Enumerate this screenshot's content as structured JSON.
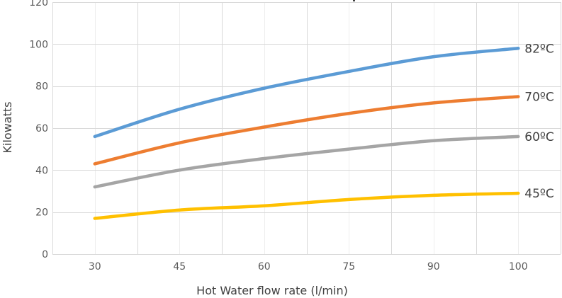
{
  "chart_data": {
    "type": "line",
    "title": "",
    "xlabel": "Hot Water flow rate (l/min)",
    "ylabel": "Kilowatts",
    "categories": [
      "30",
      "45",
      "60",
      "75",
      "90",
      "100"
    ],
    "ylim": [
      0,
      120
    ],
    "yticks": [
      0,
      20,
      40,
      60,
      80,
      100,
      120
    ],
    "grid": true,
    "legend": "inline-right",
    "series": [
      {
        "name": "82ºC",
        "color": "#5B9BD5",
        "values": [
          56,
          69,
          79,
          87,
          94,
          98
        ]
      },
      {
        "name": "70ºC",
        "color": "#ED7D31",
        "values": [
          43,
          53,
          60.5,
          67,
          72,
          75
        ]
      },
      {
        "name": "60ºC",
        "color": "#A5A5A5",
        "values": [
          32,
          40,
          45.5,
          50,
          54,
          56
        ]
      },
      {
        "name": "45ºC",
        "color": "#FFC000",
        "values": [
          17,
          21,
          23,
          26,
          28,
          29
        ]
      }
    ]
  }
}
